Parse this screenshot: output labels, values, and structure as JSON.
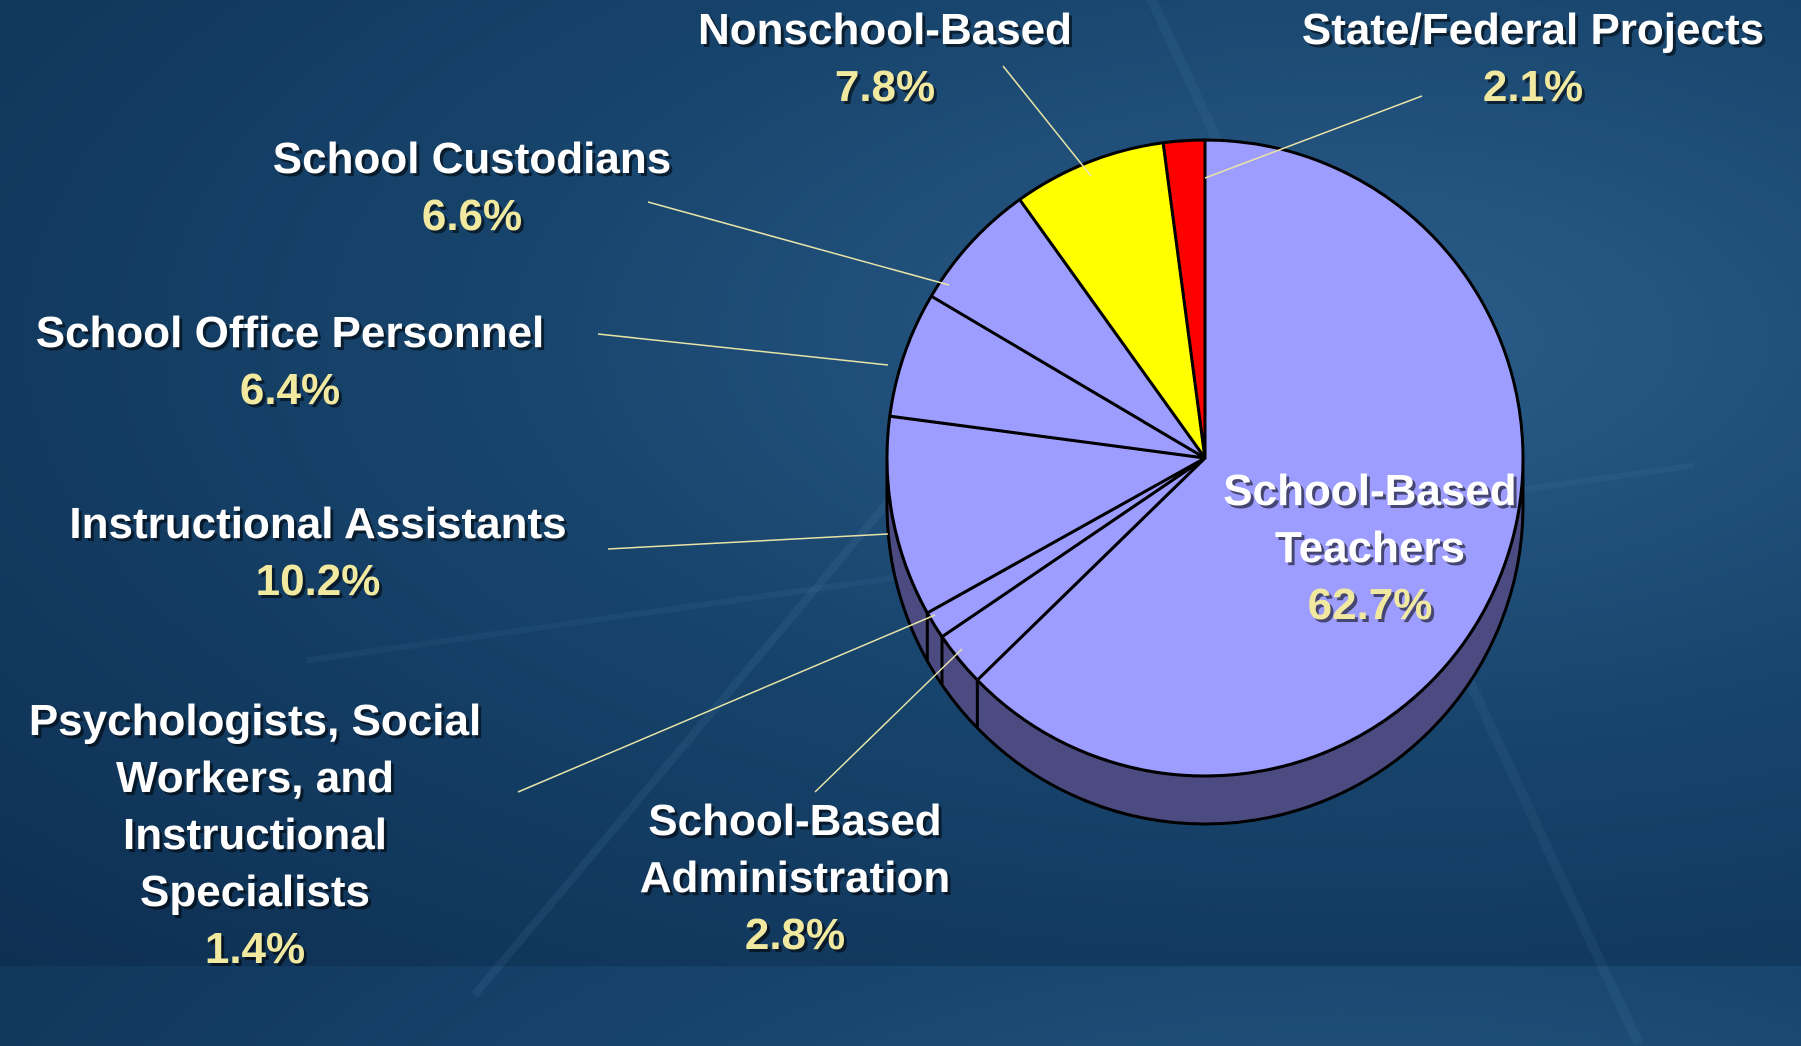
{
  "chart_data": {
    "type": "pie",
    "title": "",
    "slices": [
      {
        "label": "School-Based Teachers",
        "value": 62.7,
        "value_text": "62.7%",
        "color": "#9d9dff",
        "name_lines": [
          "School-Based",
          "Teachers"
        ]
      },
      {
        "label": "School-Based Administration",
        "value": 2.8,
        "value_text": "2.8%",
        "color": "#9d9dff",
        "name_lines": [
          "School-Based",
          "Administration"
        ]
      },
      {
        "label": "Psychologists, Social Workers, and Instructional Specialists",
        "value": 1.4,
        "value_text": "1.4%",
        "color": "#9d9dff",
        "name_lines": [
          "Psychologists, Social",
          "Workers, and",
          "Instructional",
          "Specialists"
        ]
      },
      {
        "label": "Instructional Assistants",
        "value": 10.2,
        "value_text": "10.2%",
        "color": "#9d9dff",
        "name_lines": [
          "Instructional Assistants"
        ]
      },
      {
        "label": "School Office Personnel",
        "value": 6.4,
        "value_text": "6.4%",
        "color": "#9d9dff",
        "name_lines": [
          "School Office Personnel"
        ]
      },
      {
        "label": "School Custodians",
        "value": 6.6,
        "value_text": "6.6%",
        "color": "#9d9dff",
        "name_lines": [
          "School Custodians"
        ]
      },
      {
        "label": "Nonschool-Based",
        "value": 7.8,
        "value_text": "7.8%",
        "color": "#ffff00",
        "name_lines": [
          "Nonschool-Based"
        ]
      },
      {
        "label": "State/Federal Projects",
        "value": 2.1,
        "value_text": "2.1%",
        "color": "#ff0000",
        "name_lines": [
          "State/Federal Projects"
        ]
      }
    ],
    "start_angle": "12 o'clock",
    "direction": "clockwise",
    "three_d": true,
    "side_color": "#4b4b82",
    "outline_color": "#000000",
    "leader_color": "#e8e4a8"
  }
}
